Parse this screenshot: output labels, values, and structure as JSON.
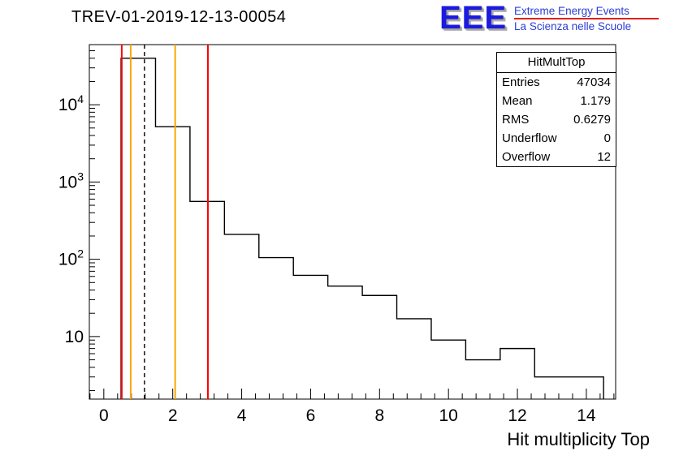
{
  "header": {
    "title": "TREV-01-2019-12-13-00054"
  },
  "logo": {
    "acronym": "EEE",
    "line1": "Extreme Energy Events",
    "line2": "La Scienza nelle Scuole",
    "text_color": "#2b3fd4",
    "divider_color": "#e02010"
  },
  "stats_box": {
    "header": "HitMultTop",
    "rows": [
      {
        "label": "Entries",
        "value": "47034"
      },
      {
        "label": "Mean",
        "value": "1.179"
      },
      {
        "label": "RMS",
        "value": "0.6279"
      },
      {
        "label": "Underflow",
        "value": "0"
      },
      {
        "label": "Overflow",
        "value": "12"
      }
    ]
  },
  "chart_data": {
    "type": "bar",
    "subtype": "step-histogram",
    "title": "TREV-01-2019-12-13-00054",
    "xlabel": "Hit multiplicity Top",
    "ylabel": "",
    "ylog": true,
    "grid": false,
    "xlim": [
      -0.42,
      14.85
    ],
    "ylim": [
      1.55,
      60000
    ],
    "bin_width": 1,
    "bin_centers": [
      1,
      2,
      3,
      4,
      5,
      6,
      7,
      8,
      9,
      10,
      11,
      12,
      13,
      14
    ],
    "counts": [
      40000,
      5200,
      560,
      210,
      105,
      62,
      45,
      34,
      17,
      9,
      5,
      7,
      3,
      3
    ],
    "x_major_ticks": [
      0,
      2,
      4,
      6,
      8,
      10,
      12,
      14
    ],
    "y_major_ticks": [
      10,
      100,
      1000,
      10000
    ],
    "line_color": "#000000",
    "markers": [
      {
        "name": "red-line-left",
        "x": 0.52,
        "color": "#ff0000",
        "dashed": false
      },
      {
        "name": "orange-line-left",
        "x": 0.78,
        "color": "#ffa500",
        "dashed": false
      },
      {
        "name": "mean-dashed-line",
        "x": 1.179,
        "color": "#000000",
        "dashed": true
      },
      {
        "name": "orange-line-right",
        "x": 2.07,
        "color": "#ffa500",
        "dashed": false
      },
      {
        "name": "red-line-right",
        "x": 3.02,
        "color": "#ff0000",
        "dashed": false
      }
    ]
  }
}
